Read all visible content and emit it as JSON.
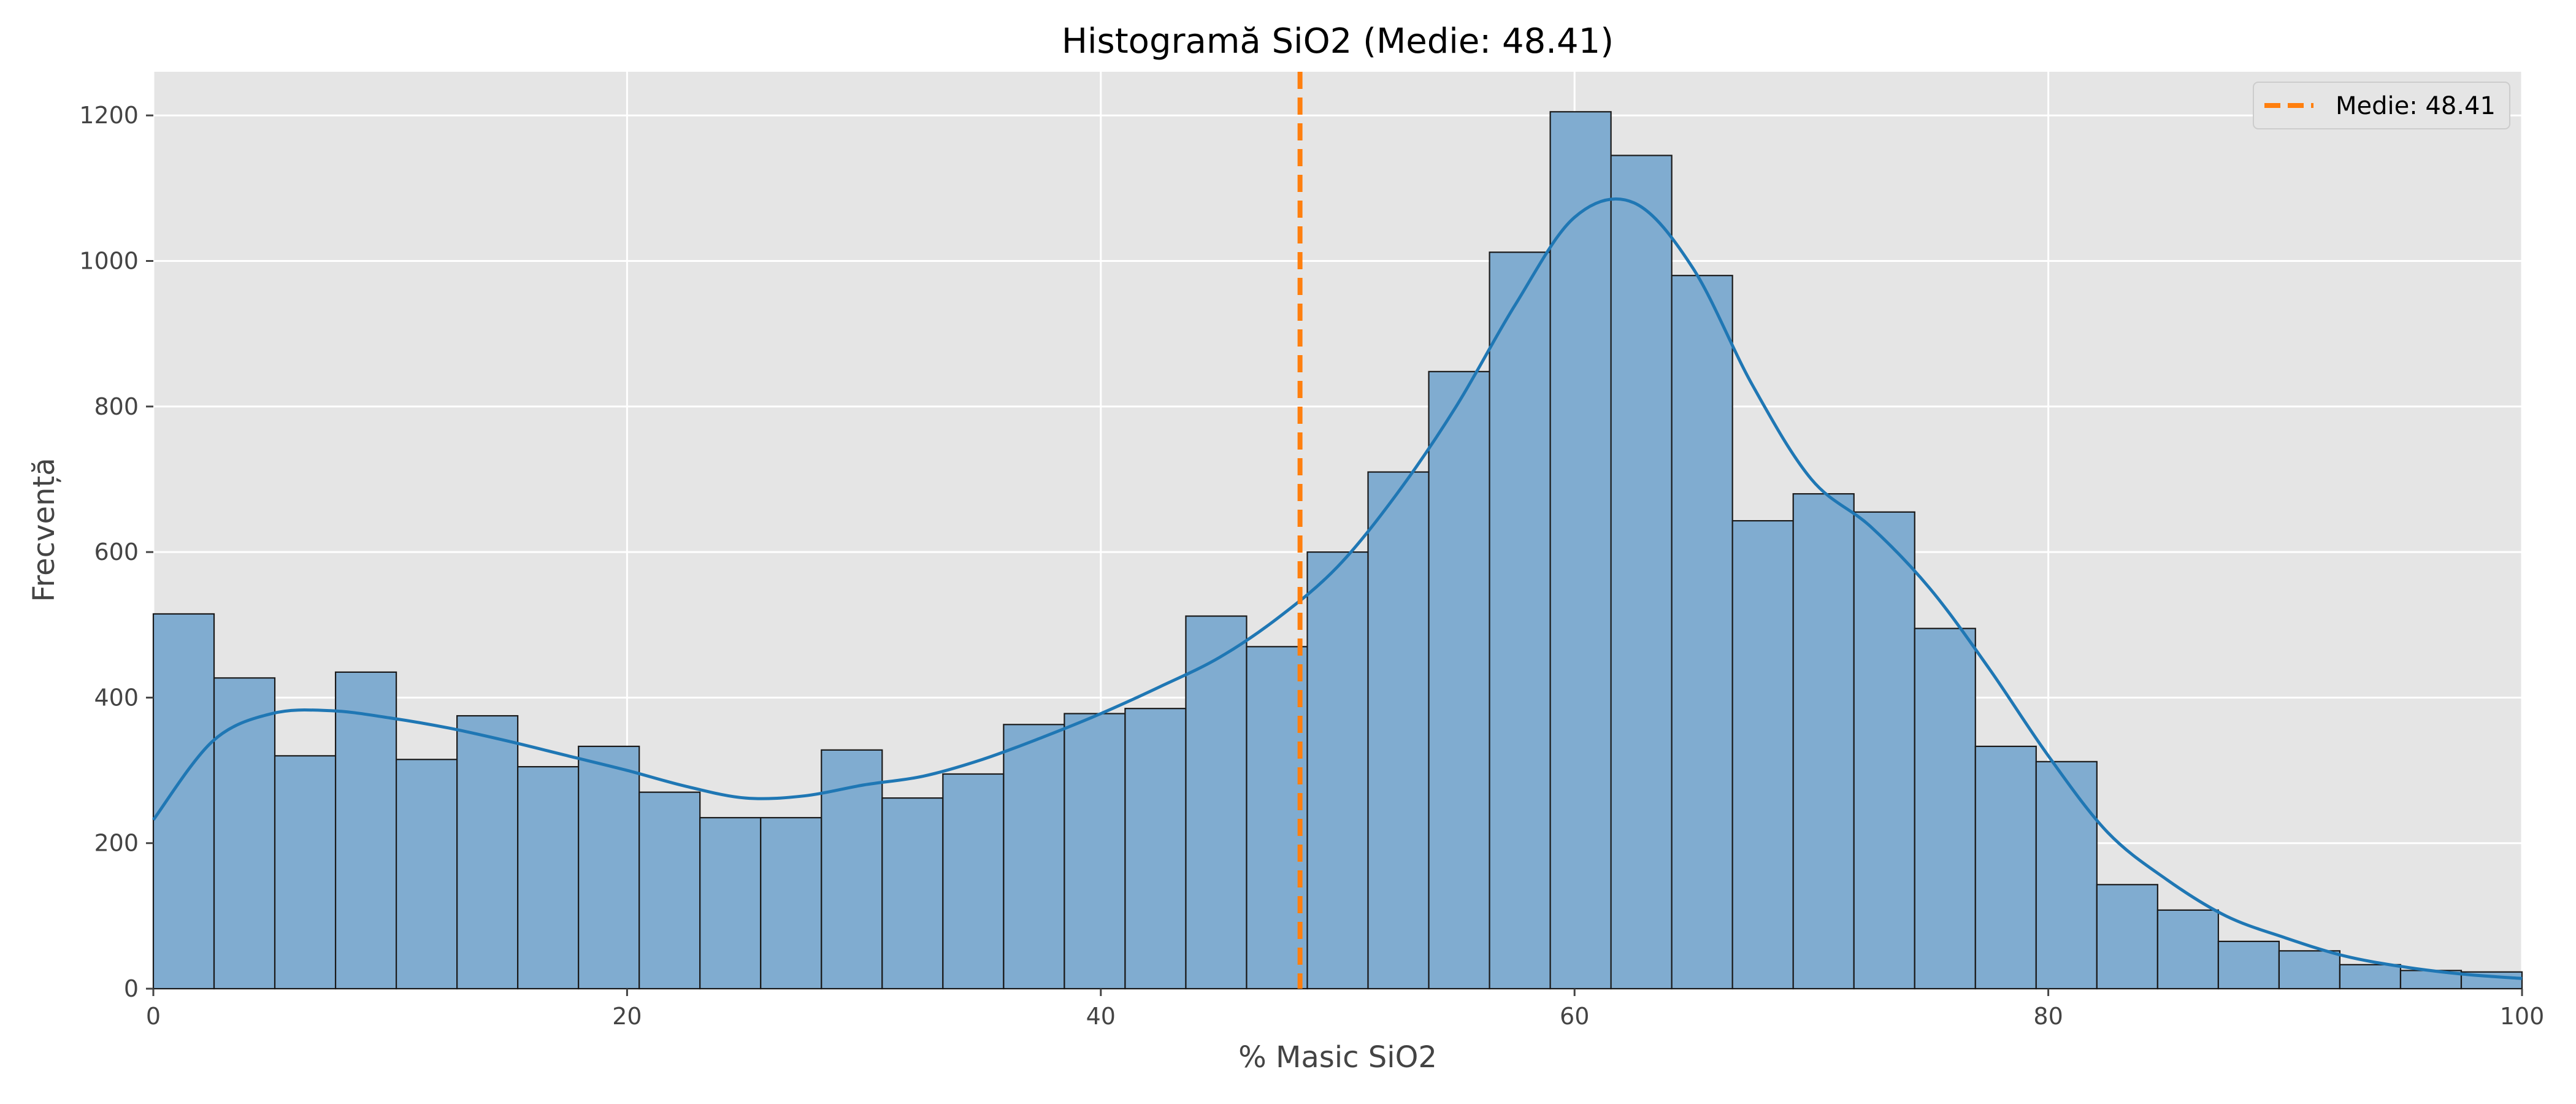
{
  "chart_data": {
    "type": "bar",
    "title": "Histogramă SiO2 (Medie: 48.41)",
    "xlabel": "% Masic SiO2",
    "ylabel": "Frecvență",
    "xlim": [
      0,
      100
    ],
    "ylim": [
      0,
      1260
    ],
    "xticks": [
      0,
      20,
      40,
      60,
      80,
      100
    ],
    "yticks": [
      0,
      200,
      400,
      600,
      800,
      1000,
      1200
    ],
    "grid": true,
    "legend_position": "top-right",
    "bin_width": 2.5641,
    "bin_edges_start": 0,
    "counts": [
      515,
      427,
      320,
      435,
      315,
      375,
      305,
      333,
      270,
      235,
      235,
      328,
      262,
      295,
      363,
      378,
      385,
      512,
      470,
      600,
      710,
      848,
      1012,
      1205,
      1145,
      980,
      643,
      680,
      655,
      495,
      333,
      312,
      143,
      108,
      65,
      52,
      33,
      25,
      23
    ],
    "kde": {
      "x": [
        0,
        2.5,
        5,
        7.5,
        10,
        12.5,
        15,
        17.5,
        20,
        22.5,
        25,
        27.5,
        30,
        32.5,
        35,
        37.5,
        40,
        42.5,
        45,
        47.5,
        50,
        52.5,
        55,
        57.5,
        60,
        62.5,
        65,
        67.5,
        70,
        72.5,
        75,
        77.5,
        80,
        82.5,
        85,
        87.5,
        90,
        92.5,
        95,
        97.5,
        100
      ],
      "y": [
        232,
        340,
        378,
        382,
        372,
        358,
        340,
        320,
        300,
        278,
        262,
        265,
        280,
        292,
        315,
        345,
        378,
        415,
        455,
        510,
        580,
        680,
        800,
        940,
        1060,
        1080,
        990,
        830,
        700,
        635,
        550,
        440,
        320,
        215,
        150,
        100,
        70,
        45,
        30,
        20,
        14
      ]
    },
    "mean": 48.41,
    "legend": [
      {
        "label": "Medie: 48.41",
        "style": "dashed",
        "color": "#ff7f0e"
      }
    ],
    "colors": {
      "bar_fill": "#80acd0",
      "bar_edge": "#1a1a1a",
      "kde_line": "#1f77b4",
      "mean_line": "#ff7f0e",
      "plot_bg": "#e5e5e5",
      "grid": "#ffffff"
    }
  }
}
